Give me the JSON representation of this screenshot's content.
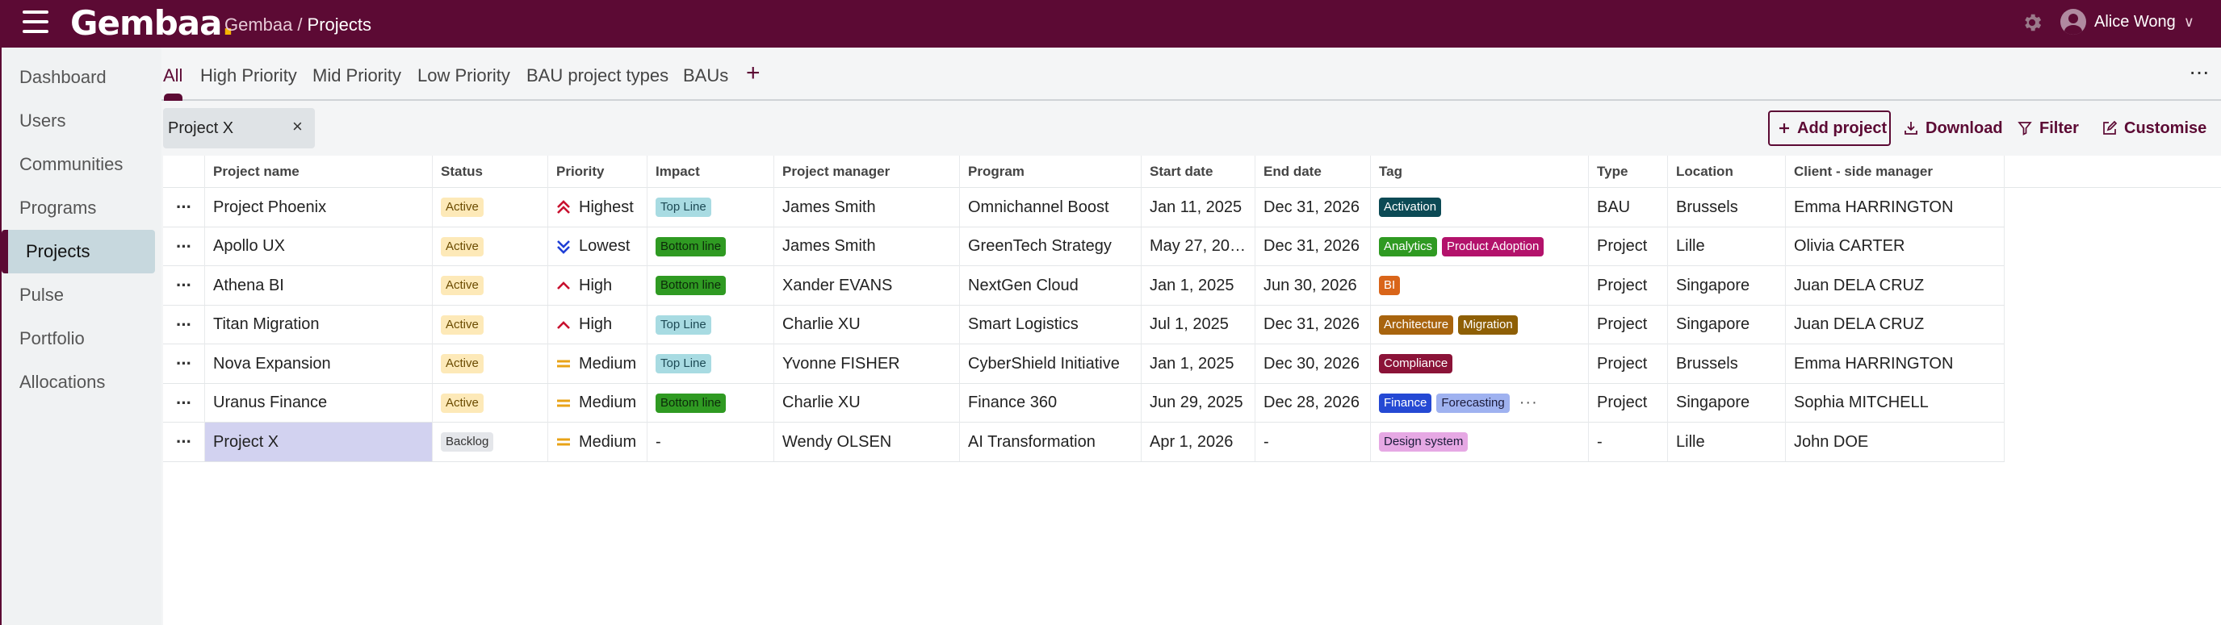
{
  "app": {
    "logo_text": "Gembaa",
    "logo_dot": ".",
    "breadcrumb_root": "Gembaa",
    "breadcrumb_sep": "/",
    "breadcrumb_current": "Projects",
    "user_name": "Alice Wong",
    "user_menu_glyph": "∨",
    "accent_color": "#5c0a34",
    "icons": [
      "hamburger-icon",
      "gear-icon",
      "avatar-icon"
    ]
  },
  "sidebar": {
    "items": [
      {
        "label": "Dashboard",
        "active": false
      },
      {
        "label": "Users",
        "active": false
      },
      {
        "label": "Communities",
        "active": false
      },
      {
        "label": "Programs",
        "active": false
      },
      {
        "label": "Projects",
        "active": true
      },
      {
        "label": "Pulse",
        "active": false
      },
      {
        "label": "Portfolio",
        "active": false
      },
      {
        "label": "Allocations",
        "active": false
      }
    ]
  },
  "tabs": {
    "items": [
      {
        "label": "All",
        "active": true
      },
      {
        "label": "High Priority",
        "active": false
      },
      {
        "label": "Mid Priority",
        "active": false
      },
      {
        "label": "Low Priority",
        "active": false
      },
      {
        "label": "BAU project types",
        "active": false
      },
      {
        "label": "BAUs",
        "active": false
      }
    ],
    "add_label": "+",
    "more_label": "···"
  },
  "filter_chip": {
    "value": "Project X",
    "close_label": "×"
  },
  "toolbar": {
    "add_project": "Add project",
    "download": "Download",
    "filter": "Filter",
    "customise": "Customise"
  },
  "table": {
    "headers": [
      "Project name",
      "Status",
      "Priority",
      "Impact",
      "Project manager",
      "Program",
      "Start date",
      "End date",
      "Tag",
      "Type",
      "Location",
      "Client - side manager"
    ],
    "row_menu_label": "···",
    "rows": [
      {
        "name": "Project Phoenix",
        "status": "Active",
        "priority": "Highest",
        "impact": "Top Line",
        "manager": "James Smith",
        "program": "Omnichannel Boost",
        "start": "Jan 11, 2025",
        "end": "Dec 31, 2026",
        "tags": [
          {
            "label": "Activation",
            "color": "#0c4a55"
          }
        ],
        "more_tags": "",
        "type": "BAU",
        "location": "Brussels",
        "client": "Emma HARRINGTON",
        "selected": false
      },
      {
        "name": "Apollo UX",
        "status": "Active",
        "priority": "Lowest",
        "impact": "Bottom line",
        "manager": "James Smith",
        "program": "GreenTech Strategy",
        "start": "May 27, 20…",
        "end": "Dec 31, 2026",
        "tags": [
          {
            "label": "Analytics",
            "color": "#2f9a22"
          },
          {
            "label": "Product Adoption",
            "color": "#b3126b"
          }
        ],
        "more_tags": "",
        "type": "Project",
        "location": "Lille",
        "client": "Olivia CARTER",
        "selected": false
      },
      {
        "name": "Athena BI",
        "status": "Active",
        "priority": "High",
        "impact": "Bottom line",
        "manager": "Xander EVANS",
        "program": "NextGen Cloud",
        "start": "Jan 1, 2025",
        "end": "Jun 30, 2026",
        "tags": [
          {
            "label": "BI",
            "color": "#d9651a"
          }
        ],
        "more_tags": "",
        "type": "Project",
        "location": "Singapore",
        "client": "Juan DELA CRUZ",
        "selected": false
      },
      {
        "name": "Titan Migration",
        "status": "Active",
        "priority": "High",
        "impact": "Top Line",
        "manager": "Charlie XU",
        "program": "Smart Logistics",
        "start": "Jul 1, 2025",
        "end": "Dec 31, 2026",
        "tags": [
          {
            "label": "Architecture",
            "color": "#a8640e"
          },
          {
            "label": "Migration",
            "color": "#8e5f05"
          }
        ],
        "more_tags": "",
        "type": "Project",
        "location": "Singapore",
        "client": "Juan DELA CRUZ",
        "selected": false
      },
      {
        "name": "Nova Expansion",
        "status": "Active",
        "priority": "Medium",
        "impact": "Top Line",
        "manager": "Yvonne FISHER",
        "program": "CyberShield Initiative",
        "start": "Jan 1, 2025",
        "end": "Dec 30, 2026",
        "tags": [
          {
            "label": "Compliance",
            "color": "#8b1338"
          }
        ],
        "more_tags": "",
        "type": "Project",
        "location": "Brussels",
        "client": "Emma HARRINGTON",
        "selected": false
      },
      {
        "name": "Uranus Finance",
        "status": "Active",
        "priority": "Medium",
        "impact": "Bottom line",
        "manager": "Charlie XU",
        "program": "Finance 360",
        "start": "Jun 29, 2025",
        "end": "Dec 28, 2026",
        "tags": [
          {
            "label": "Finance",
            "color": "#2549d4"
          },
          {
            "label": "Forecasting",
            "color": "#9fb2f0"
          }
        ],
        "more_tags": "···",
        "type": "Project",
        "location": "Singapore",
        "client": "Sophia MITCHELL",
        "selected": false
      },
      {
        "name": "Project X",
        "status": "Backlog",
        "priority": "Medium",
        "impact": "-",
        "manager": "Wendy OLSEN",
        "program": "AI Transformation",
        "start": "Apr 1, 2026",
        "end": "-",
        "tags": [
          {
            "label": "Design system",
            "color": "#e6a8e4"
          }
        ],
        "more_tags": "",
        "type": "-",
        "location": "Lille",
        "client": "John DOE",
        "selected": true
      }
    ]
  }
}
